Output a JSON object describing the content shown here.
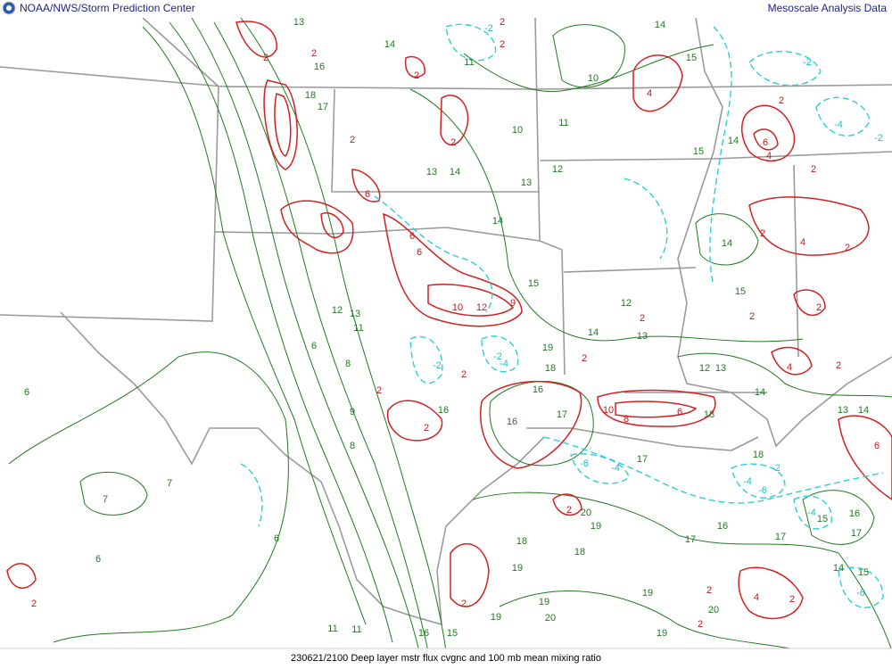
{
  "header": {
    "left": "NOAA/NWS/Storm Prediction Center",
    "right": "Mesoscale Analysis Data"
  },
  "footer": "230621/2100 Deep layer mstr flux cvgnc and 100 mb mean mixing ratio",
  "mixing_ratio_labels": [
    13,
    14,
    16,
    18,
    17,
    13,
    14,
    10,
    11,
    10,
    11,
    14,
    15,
    15,
    14,
    13,
    12,
    14,
    15,
    12,
    13,
    19,
    18,
    14,
    14,
    15,
    12,
    13,
    14,
    13,
    14,
    16,
    16,
    17,
    16,
    17,
    18,
    18,
    12,
    13,
    11,
    6,
    8,
    9,
    8,
    6,
    7,
    7,
    6,
    6,
    18,
    19,
    18,
    19,
    20,
    17,
    16,
    17,
    15,
    16,
    17,
    14,
    15,
    19,
    20,
    19,
    19,
    20,
    19,
    11,
    11,
    16,
    15
  ],
  "convergence_labels": [
    2,
    2,
    2,
    2,
    2,
    2,
    2,
    6,
    6,
    6,
    10,
    12,
    9,
    2,
    2,
    2,
    2,
    10,
    8,
    6,
    4,
    6,
    4,
    2,
    2,
    2,
    4,
    2,
    2,
    2,
    2,
    4,
    2,
    2,
    2,
    2,
    4,
    2,
    6,
    2,
    2
  ],
  "divergence_labels": [
    -2,
    -2,
    -4,
    -2,
    -6,
    -4,
    -6,
    -4,
    -4,
    -2,
    -6,
    -2,
    -4,
    -2
  ]
}
